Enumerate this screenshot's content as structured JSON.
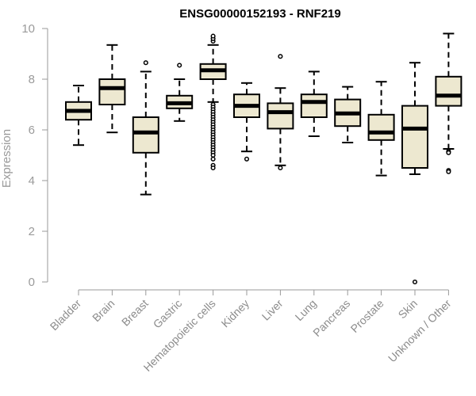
{
  "chart_data": {
    "type": "boxplot",
    "title": "ENSG00000152193 - RNF219",
    "ylabel": "Expression",
    "xlabel": "",
    "ylim": [
      0,
      10
    ],
    "yticks": [
      0,
      2,
      4,
      6,
      8,
      10
    ],
    "box_fill": "#ede8d0",
    "box_stroke": "#000000",
    "median_color": "#000000",
    "axis_color": "#9a9a9a",
    "grid": false,
    "categories": [
      "Bladder",
      "Brain",
      "Breast",
      "Gastric",
      "Hematopoietic cells",
      "Kidney",
      "Liver",
      "Lung",
      "Pancreas",
      "Prostate",
      "Skin",
      "Unknown / Other"
    ],
    "boxes": [
      {
        "category": "Bladder",
        "whisker_low": 5.4,
        "q1": 6.4,
        "median": 6.75,
        "q3": 7.1,
        "whisker_high": 7.75,
        "outliers": []
      },
      {
        "category": "Brain",
        "whisker_low": 5.9,
        "q1": 7.0,
        "median": 7.65,
        "q3": 8.0,
        "whisker_high": 9.35,
        "outliers": []
      },
      {
        "category": "Breast",
        "whisker_low": 3.45,
        "q1": 5.1,
        "median": 5.9,
        "q3": 6.5,
        "whisker_high": 8.3,
        "outliers": [
          8.65
        ]
      },
      {
        "category": "Gastric",
        "whisker_low": 6.35,
        "q1": 6.85,
        "median": 7.05,
        "q3": 7.35,
        "whisker_high": 8.0,
        "outliers": [
          8.55
        ]
      },
      {
        "category": "Hematopoietic cells",
        "whisker_low": 7.1,
        "q1": 8.0,
        "median": 8.35,
        "q3": 8.6,
        "whisker_high": 9.35,
        "outliers": [
          9.5,
          9.6,
          9.7,
          7.0,
          6.9,
          6.8,
          6.7,
          6.6,
          6.5,
          6.4,
          6.3,
          6.2,
          6.1,
          6.0,
          5.9,
          5.8,
          5.7,
          5.6,
          5.5,
          5.4,
          5.3,
          5.2,
          5.1,
          5.0,
          4.85,
          4.6,
          4.5
        ]
      },
      {
        "category": "Kidney",
        "whisker_low": 5.15,
        "q1": 6.5,
        "median": 6.95,
        "q3": 7.4,
        "whisker_high": 7.85,
        "outliers": [
          4.85
        ]
      },
      {
        "category": "Liver",
        "whisker_low": 4.6,
        "q1": 6.05,
        "median": 6.7,
        "q3": 7.05,
        "whisker_high": 7.65,
        "outliers": [
          8.9,
          4.5
        ]
      },
      {
        "category": "Lung",
        "whisker_low": 5.75,
        "q1": 6.5,
        "median": 7.1,
        "q3": 7.4,
        "whisker_high": 8.3,
        "outliers": []
      },
      {
        "category": "Pancreas",
        "whisker_low": 5.5,
        "q1": 6.15,
        "median": 6.65,
        "q3": 7.2,
        "whisker_high": 7.7,
        "outliers": []
      },
      {
        "category": "Prostate",
        "whisker_low": 4.2,
        "q1": 5.6,
        "median": 5.9,
        "q3": 6.6,
        "whisker_high": 7.9,
        "outliers": []
      },
      {
        "category": "Skin",
        "whisker_low": 4.25,
        "q1": 4.5,
        "median": 6.05,
        "q3": 6.95,
        "whisker_high": 8.65,
        "outliers": [
          0.0
        ]
      },
      {
        "category": "Unknown / Other",
        "whisker_low": 5.25,
        "q1": 6.95,
        "median": 7.35,
        "q3": 8.1,
        "whisker_high": 9.8,
        "outliers": [
          5.15,
          5.1,
          4.4,
          4.35
        ]
      }
    ]
  }
}
